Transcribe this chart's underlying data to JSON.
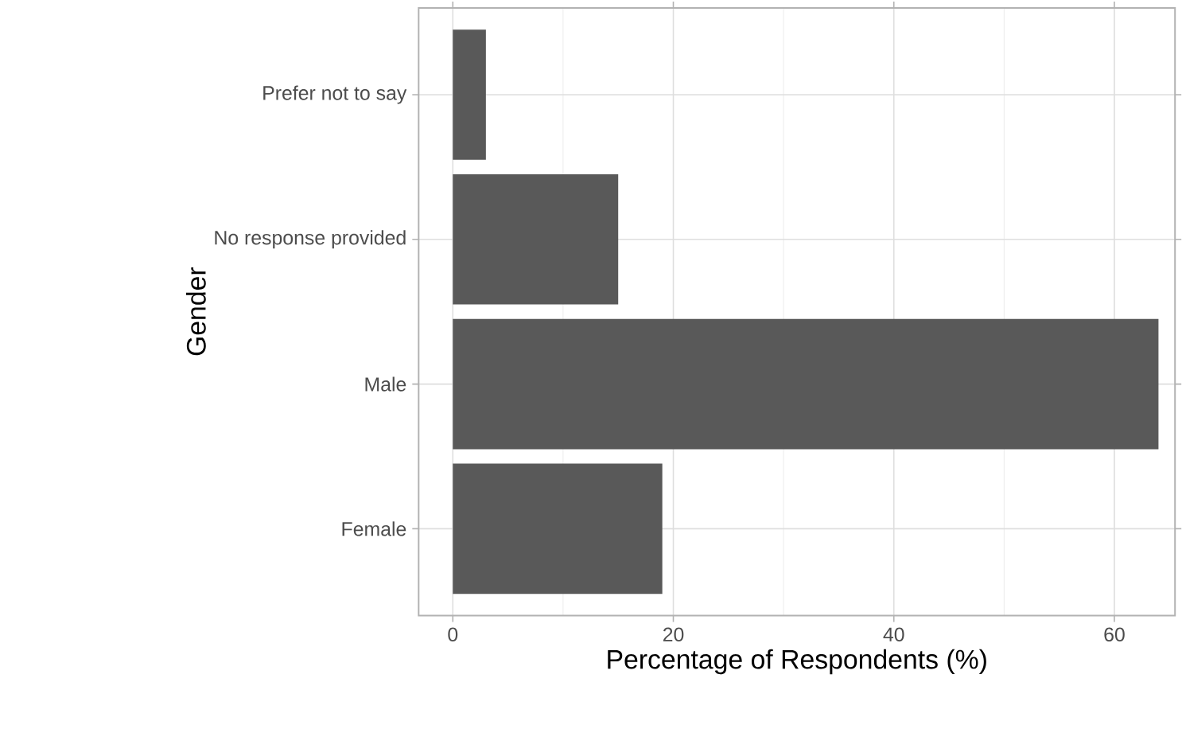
{
  "chart_data": {
    "type": "bar",
    "orientation": "horizontal",
    "xlabel": "Percentage of Respondents (%)",
    "ylabel": "Gender",
    "categories": [
      "Prefer not to say",
      "No response provided",
      "Male",
      "Female"
    ],
    "values": [
      3,
      15,
      64,
      19
    ],
    "color": "#595959",
    "xlim": [
      -3.1,
      65.5
    ],
    "xticks": [
      0,
      20,
      40,
      60
    ],
    "grid": true
  }
}
